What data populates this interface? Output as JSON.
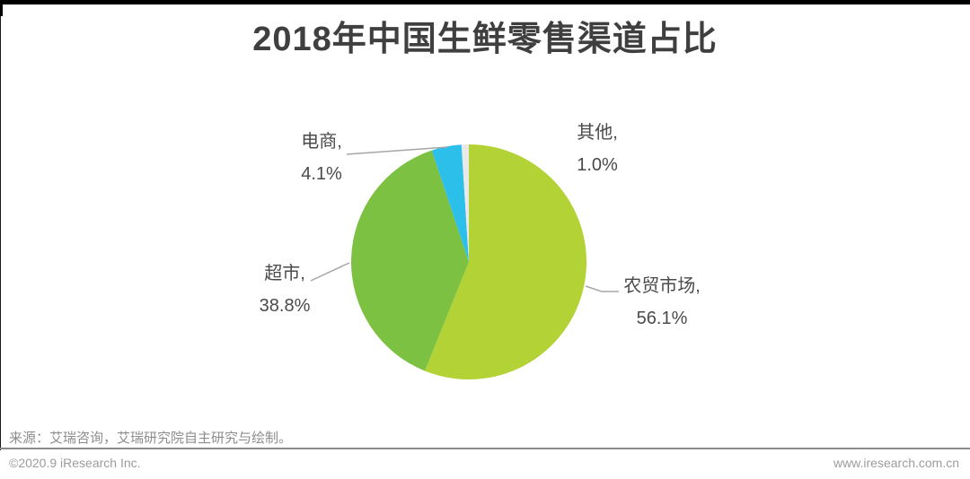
{
  "header": {
    "title": "2018年中国生鲜零售渠道占比"
  },
  "chart_data": {
    "type": "pie",
    "title": "2018年中国生鲜零售渠道占比",
    "unit": "%",
    "start_angle_deg": 0,
    "direction": "clockwise",
    "legend_position": "none",
    "labels_style": "outside with leader lines",
    "slices": [
      {
        "label": "农贸市场",
        "value": 56.1,
        "label_line": "农贸市场,",
        "value_line": "56.1%",
        "color": "#B2D235"
      },
      {
        "label": "超市",
        "value": 38.8,
        "label_line": "超市,",
        "value_line": "38.8%",
        "color": "#7CC142"
      },
      {
        "label": "电商",
        "value": 4.1,
        "label_line": "电商,",
        "value_line": "4.1%",
        "color": "#2BBFE9"
      },
      {
        "label": "其他",
        "value": 1.0,
        "label_line": "其他,",
        "value_line": "1.0%",
        "color": "#E9E9E9"
      }
    ]
  },
  "footer": {
    "source": "来源：艾瑞咨询，艾瑞研究院自主研究与绘制。",
    "copyright": "©2020.9 iResearch Inc.",
    "website": "www.iresearch.com.cn"
  },
  "colors": {
    "title_text": "#3f3f3f",
    "label_text": "#4a4a4a",
    "leader_line": "#A6A6A6",
    "footer_text": "#8c8c8c",
    "divider": "#8a8a8a",
    "top_bar": "#000000"
  }
}
